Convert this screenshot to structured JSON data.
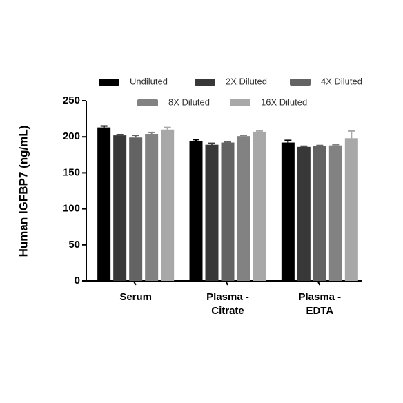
{
  "chart_data": {
    "type": "bar",
    "y_label": "Human IGFBP7 (ng/mL)",
    "categories": [
      [
        "Serum"
      ],
      [
        "Plasma -",
        "Citrate"
      ],
      [
        "Plasma -",
        "EDTA"
      ]
    ],
    "series": [
      {
        "name": "Undiluted",
        "color": "#000000",
        "values": [
          213,
          194,
          192
        ],
        "errors": [
          2,
          2,
          3
        ]
      },
      {
        "name": "2X Diluted",
        "color": "#383838",
        "values": [
          202,
          189,
          186
        ],
        "errors": [
          1,
          2,
          1
        ]
      },
      {
        "name": "4X Diluted",
        "color": "#636363",
        "values": [
          199,
          192,
          187
        ],
        "errors": [
          3,
          1,
          1
        ]
      },
      {
        "name": "8X Diluted",
        "color": "#828282",
        "values": [
          204,
          201,
          188
        ],
        "errors": [
          2,
          1,
          1
        ]
      },
      {
        "name": "16X Diluted",
        "color": "#a8a8a8",
        "values": [
          210,
          207,
          198
        ],
        "errors": [
          3,
          1,
          10
        ]
      }
    ],
    "ylim": [
      0,
      250
    ],
    "yticks": [
      0,
      50,
      100,
      150,
      200,
      250
    ]
  }
}
